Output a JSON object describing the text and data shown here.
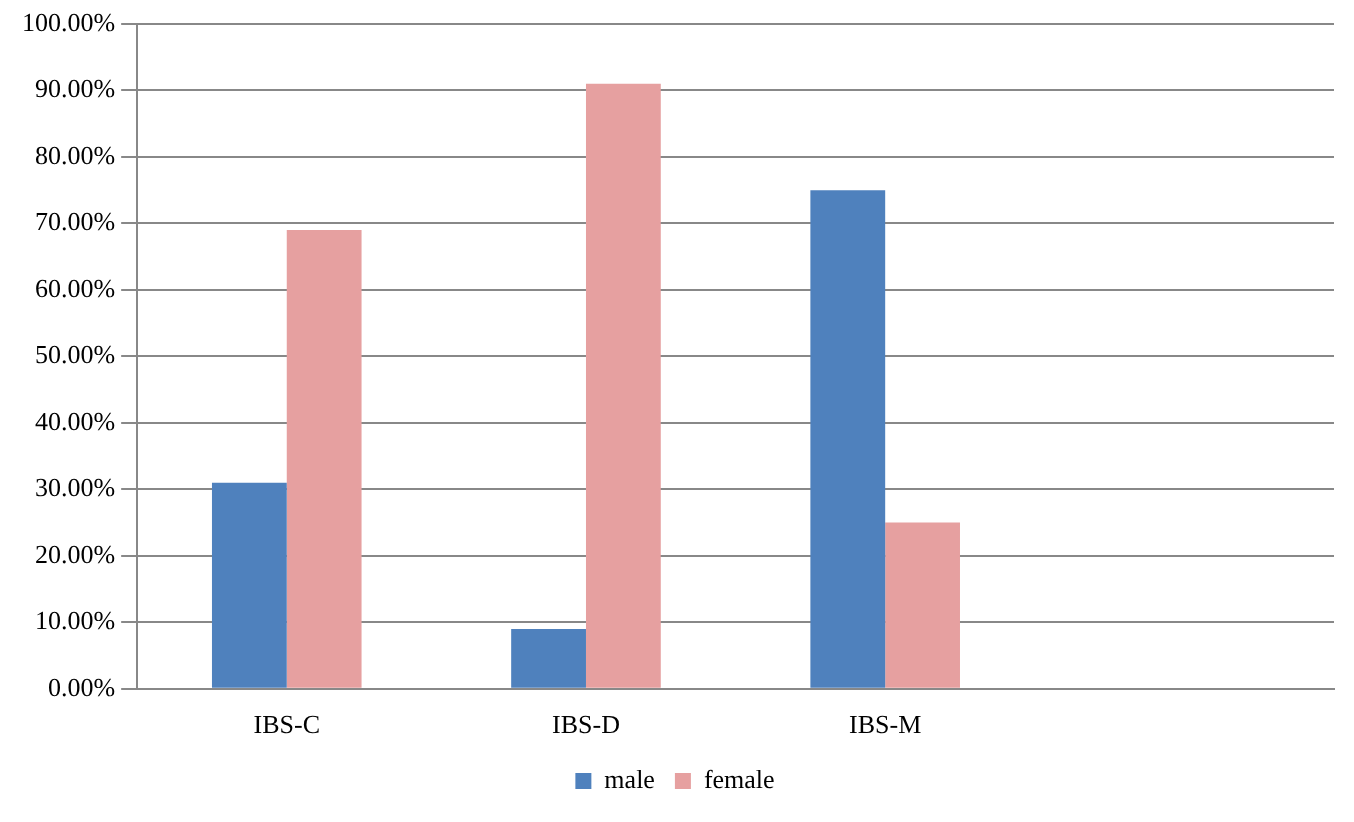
{
  "chart_data": {
    "type": "bar",
    "categories": [
      "IBS-C",
      "IBS-D",
      "IBS-M",
      null
    ],
    "series": [
      {
        "name": "male",
        "color": "#4f81bd",
        "values": [
          31,
          9,
          75,
          null
        ]
      },
      {
        "name": "female",
        "color": "#e6a0a0",
        "values": [
          69,
          91,
          25,
          null
        ]
      }
    ],
    "ylim": [
      0,
      100
    ],
    "yticks": [
      {
        "value": 0,
        "label": "0.00%"
      },
      {
        "value": 10,
        "label": "10.00%"
      },
      {
        "value": 20,
        "label": "20.00%"
      },
      {
        "value": 30,
        "label": "30.00%"
      },
      {
        "value": 40,
        "label": "40.00%"
      },
      {
        "value": 50,
        "label": "50.00%"
      },
      {
        "value": 60,
        "label": "60.00%"
      },
      {
        "value": 70,
        "label": "70.00%"
      },
      {
        "value": 80,
        "label": "80.00%"
      },
      {
        "value": 90,
        "label": "90.00%"
      },
      {
        "value": 100,
        "label": "100.00%"
      }
    ],
    "grid": "y",
    "legend": "bottom"
  }
}
